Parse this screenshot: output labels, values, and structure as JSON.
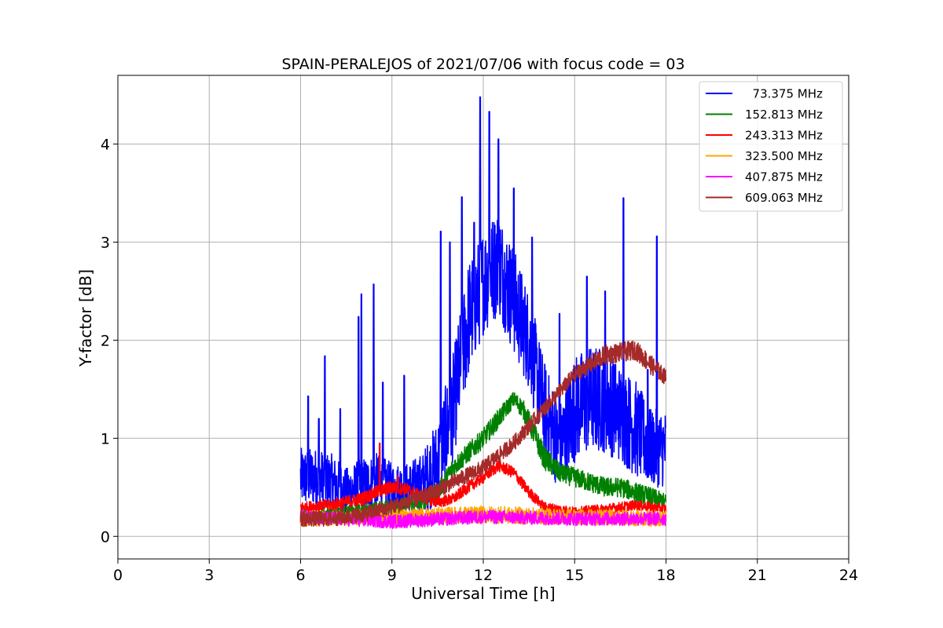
{
  "chart_data": {
    "type": "line",
    "title": "SPAIN-PERALEJOS of 2021/07/06 with focus code = 03",
    "xlabel": "Universal Time [h]",
    "ylabel": "Y-factor [dB]",
    "xlim": [
      0,
      24
    ],
    "ylim": [
      -0.23,
      4.7
    ],
    "xticks": [
      0,
      3,
      6,
      9,
      12,
      15,
      18,
      21,
      24
    ],
    "yticks": [
      0,
      1,
      2,
      3,
      4
    ],
    "grid": true,
    "legend_position": "top-right",
    "series": [
      {
        "name": "  73.375 MHz",
        "color": "#0000ff",
        "x": [
          6.0,
          6.5,
          7.0,
          7.5,
          8.0,
          8.5,
          9.0,
          9.5,
          10.0,
          10.5,
          11.0,
          11.5,
          12.0,
          12.5,
          13.0,
          13.5,
          14.0,
          14.5,
          15.0,
          15.5,
          16.0,
          16.5,
          17.0,
          17.5,
          18.0
        ],
        "y": [
          0.6,
          0.6,
          0.55,
          0.45,
          0.5,
          0.55,
          0.5,
          0.5,
          0.55,
          0.75,
          1.3,
          2.2,
          2.6,
          2.8,
          2.4,
          2.0,
          1.3,
          0.9,
          1.3,
          1.4,
          1.4,
          1.25,
          1.1,
          0.9,
          0.9
        ],
        "spread": [
          0.3,
          0.3,
          0.3,
          0.25,
          0.3,
          0.3,
          0.25,
          0.25,
          0.3,
          0.45,
          0.55,
          0.6,
          0.55,
          0.55,
          0.55,
          0.5,
          0.5,
          0.45,
          0.55,
          0.55,
          0.55,
          0.5,
          0.5,
          0.4,
          0.4
        ],
        "spikes": [
          [
            6.25,
            1.43
          ],
          [
            6.6,
            1.2
          ],
          [
            6.8,
            1.84
          ],
          [
            7.3,
            1.3
          ],
          [
            7.9,
            2.24
          ],
          [
            8.0,
            2.47
          ],
          [
            8.4,
            2.57
          ],
          [
            8.7,
            1.57
          ],
          [
            9.4,
            1.64
          ],
          [
            10.6,
            3.11
          ],
          [
            10.9,
            3.0
          ],
          [
            11.3,
            3.46
          ],
          [
            11.7,
            3.2
          ],
          [
            11.9,
            4.48
          ],
          [
            12.2,
            4.33
          ],
          [
            12.5,
            4.05
          ],
          [
            13.0,
            3.55
          ],
          [
            13.6,
            3.05
          ],
          [
            14.5,
            2.27
          ],
          [
            15.4,
            2.65
          ],
          [
            16.0,
            2.5
          ],
          [
            16.6,
            3.45
          ],
          [
            17.4,
            1.7
          ],
          [
            17.7,
            3.06
          ]
        ]
      },
      {
        "name": "152.813 MHz",
        "color": "#008000",
        "x": [
          6.0,
          7.0,
          8.0,
          9.0,
          10.0,
          10.5,
          11.0,
          11.5,
          12.0,
          12.5,
          13.0,
          13.3,
          13.6,
          14.0,
          14.5,
          15.0,
          15.5,
          16.0,
          16.5,
          17.0,
          17.5,
          18.0
        ],
        "y": [
          0.2,
          0.22,
          0.25,
          0.3,
          0.35,
          0.45,
          0.7,
          0.85,
          1.0,
          1.2,
          1.4,
          1.3,
          1.1,
          0.8,
          0.65,
          0.6,
          0.55,
          0.5,
          0.5,
          0.45,
          0.4,
          0.35
        ],
        "spread": [
          0.08,
          0.08,
          0.08,
          0.08,
          0.08,
          0.09,
          0.1,
          0.1,
          0.1,
          0.1,
          0.08,
          0.1,
          0.12,
          0.12,
          0.1,
          0.1,
          0.1,
          0.1,
          0.1,
          0.1,
          0.1,
          0.08
        ],
        "spikes": []
      },
      {
        "name": "243.313 MHz",
        "color": "#ff0000",
        "x": [
          6.0,
          7.0,
          8.0,
          8.5,
          9.0,
          9.5,
          10.0,
          10.5,
          11.0,
          11.5,
          12.0,
          12.5,
          13.0,
          13.5,
          14.0,
          15.0,
          16.0,
          17.0,
          18.0
        ],
        "y": [
          0.3,
          0.32,
          0.38,
          0.45,
          0.5,
          0.48,
          0.4,
          0.35,
          0.38,
          0.5,
          0.6,
          0.72,
          0.65,
          0.45,
          0.3,
          0.25,
          0.28,
          0.32,
          0.28
        ],
        "spread": [
          0.05,
          0.06,
          0.07,
          0.07,
          0.07,
          0.06,
          0.06,
          0.06,
          0.06,
          0.06,
          0.06,
          0.06,
          0.06,
          0.06,
          0.05,
          0.05,
          0.05,
          0.05,
          0.05
        ],
        "spikes": [
          [
            8.6,
            0.95
          ],
          [
            9.2,
            0.62
          ]
        ]
      },
      {
        "name": "323.500 MHz",
        "color": "#ffa500",
        "x": [
          6.0,
          9.0,
          12.0,
          15.0,
          18.0
        ],
        "y": [
          0.18,
          0.2,
          0.22,
          0.2,
          0.18
        ],
        "spread": [
          0.08,
          0.08,
          0.09,
          0.08,
          0.08
        ],
        "spikes": []
      },
      {
        "name": "407.875 MHz",
        "color": "#ff00ff",
        "x": [
          6.0,
          9.0,
          12.0,
          15.0,
          18.0
        ],
        "y": [
          0.2,
          0.15,
          0.2,
          0.18,
          0.18
        ],
        "spread": [
          0.07,
          0.07,
          0.07,
          0.07,
          0.07
        ],
        "spikes": []
      },
      {
        "name": "609.063 MHz",
        "color": "#a52a2a",
        "x": [
          6.0,
          7.0,
          8.0,
          9.0,
          10.0,
          11.0,
          12.0,
          13.0,
          14.0,
          15.0,
          16.0,
          17.0,
          17.5,
          18.0
        ],
        "y": [
          0.18,
          0.18,
          0.22,
          0.3,
          0.4,
          0.55,
          0.7,
          0.95,
          1.3,
          1.65,
          1.85,
          1.9,
          1.75,
          1.62
        ],
        "spread": [
          0.08,
          0.08,
          0.08,
          0.08,
          0.08,
          0.08,
          0.08,
          0.08,
          0.08,
          0.08,
          0.1,
          0.1,
          0.1,
          0.08
        ],
        "spikes": []
      }
    ]
  }
}
